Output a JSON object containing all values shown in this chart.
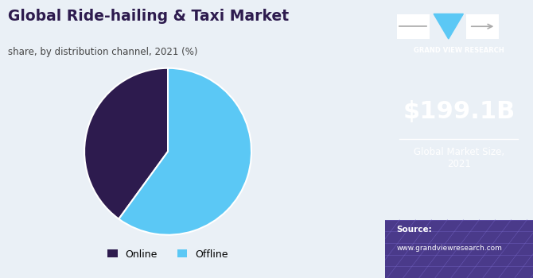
{
  "title": "Global Ride-hailing & Taxi Market",
  "subtitle": "share, by distribution channel, 2021 (%)",
  "pie_values": [
    40,
    60
  ],
  "pie_labels": [
    "Online",
    "Offline"
  ],
  "pie_colors": [
    "#2d1b4e",
    "#5bc8f5"
  ],
  "pie_startangle": 90,
  "left_bg_color": "#eaf0f6",
  "right_bg_color": "#3b1a5a",
  "right_bottom_color": "#4a3a8a",
  "market_size": "$199.1B",
  "market_label": "Global Market Size,\n2021",
  "source_label": "Source:",
  "source_url": "www.grandviewresearch.com",
  "title_color": "#2d1b4e",
  "subtitle_color": "#444444",
  "legend_online_color": "#2d1b4e",
  "legend_offline_color": "#5bc8f5",
  "gvr_text": "GRAND VIEW RESEARCH"
}
